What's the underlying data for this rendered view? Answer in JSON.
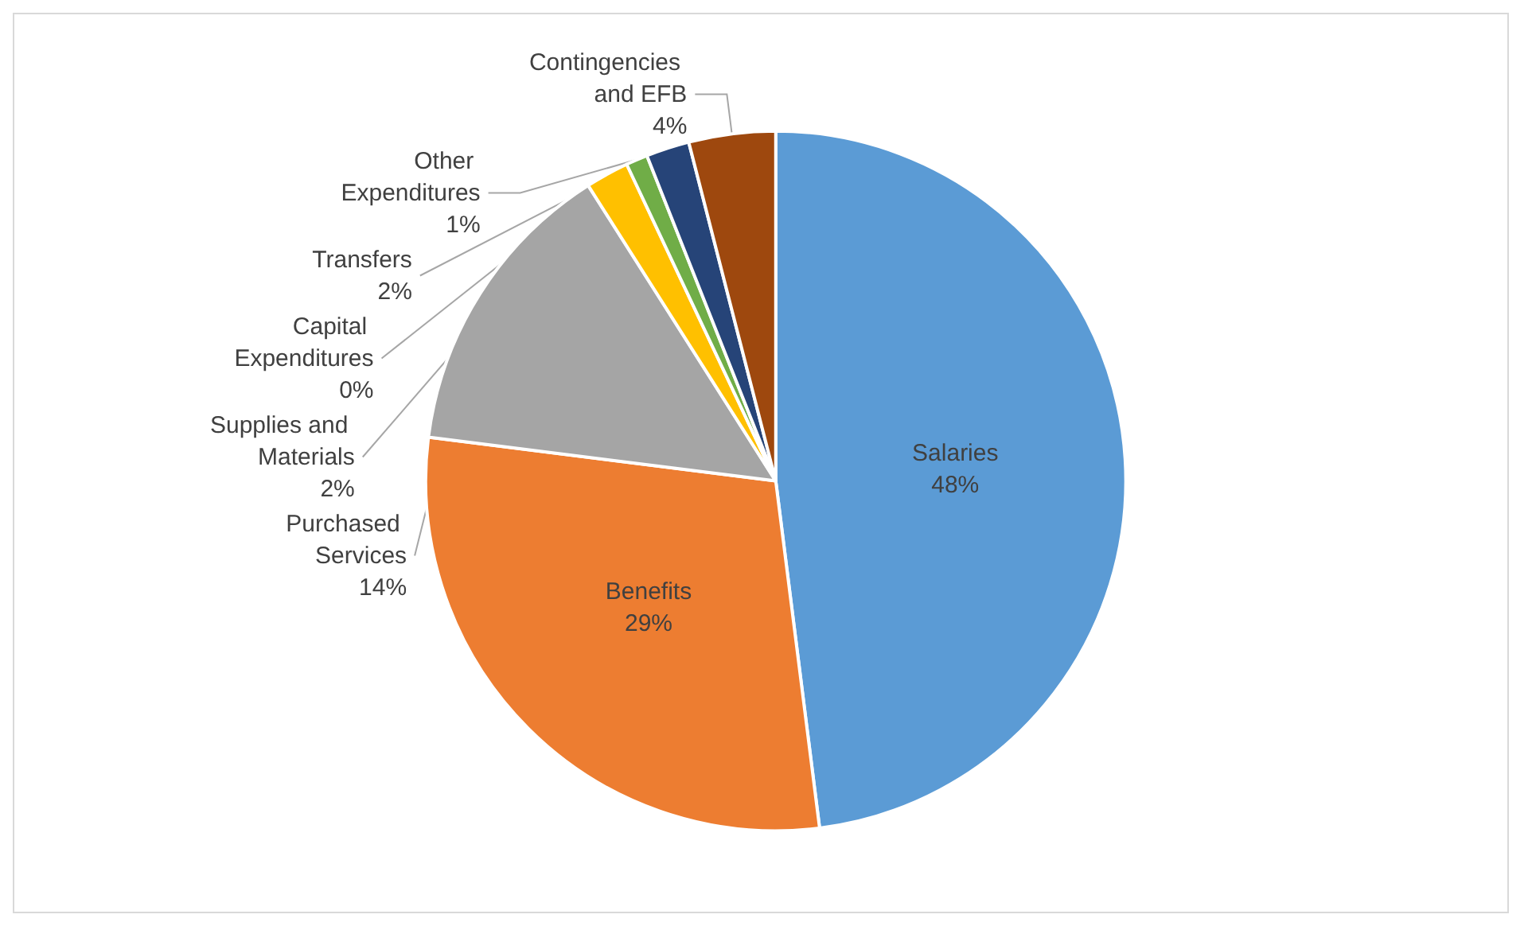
{
  "chart_data": {
    "type": "pie",
    "categories": [
      "Salaries",
      "Benefits",
      "Purchased Services",
      "Supplies and Materials",
      "Capital Expenditures",
      "Other Expenditures",
      "Transfers",
      "Contingencies and EFB"
    ],
    "values": [
      48,
      29,
      14,
      2,
      0,
      1,
      2,
      4
    ],
    "colors": [
      "#5b9bd5",
      "#ed7d31",
      "#a5a5a5",
      "#ffc000",
      "#4472c4",
      "#70ad47",
      "#264478",
      "#9e480e"
    ],
    "value_labels": [
      "48%",
      "29%",
      "14%",
      "2%",
      "0%",
      "1%",
      "2%",
      "4%"
    ],
    "legend": false
  }
}
